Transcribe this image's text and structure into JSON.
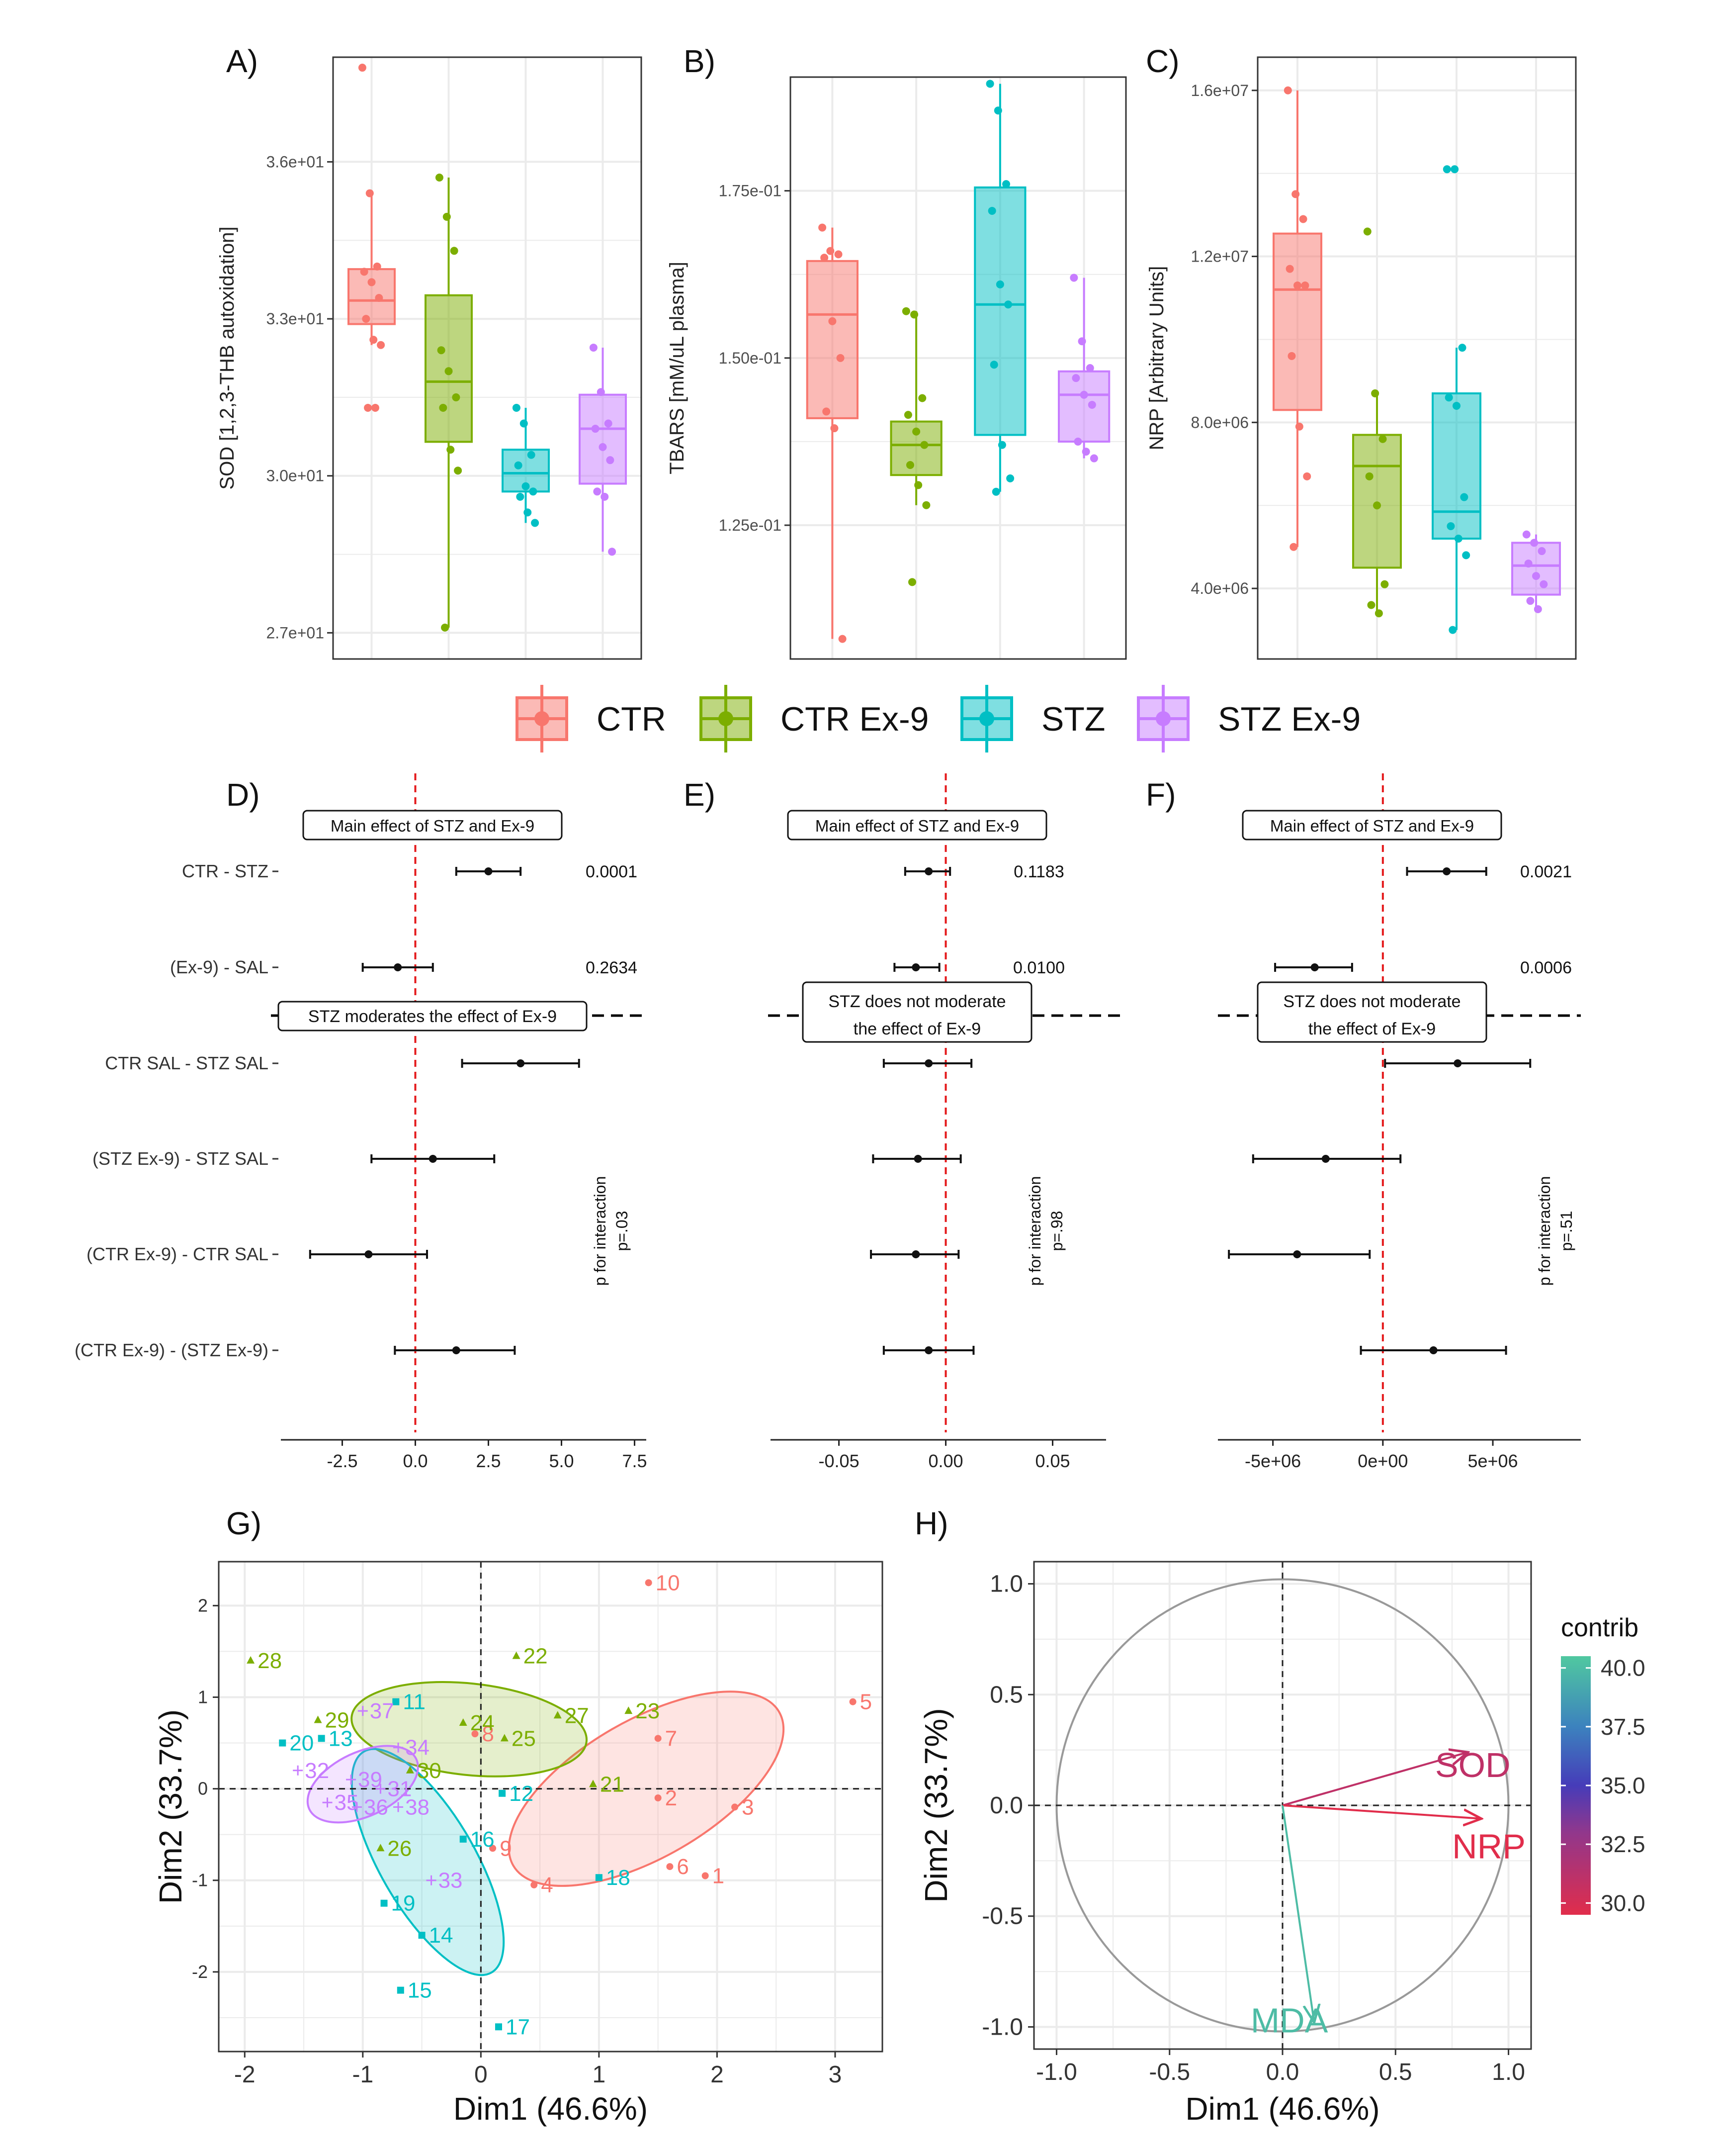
{
  "colors": {
    "CTR": "#F8766D",
    "CTR Ex-9": "#7CAE00",
    "STZ": "#00BFC4",
    "STZ Ex-9": "#C77CFF",
    "grid": "#EBEBEB",
    "ref": "#E41A1C"
  },
  "legend": {
    "items": [
      "CTR",
      "CTR Ex-9",
      "STZ",
      "STZ Ex-9"
    ]
  },
  "chart_data": [
    {
      "id": "A",
      "panel_label": "A)",
      "type": "box",
      "ylabel": "SOD [1,2,3-THB autoxidation]",
      "ylim": [
        26.5,
        38.0
      ],
      "ticks": [
        27,
        30,
        33,
        36
      ],
      "tick_labels": [
        "2.7e+01",
        "3.0e+01",
        "3.3e+01",
        "3.6e+01"
      ],
      "groups": [
        {
          "name": "CTR",
          "q1": 32.9,
          "median": 33.35,
          "q3": 33.95,
          "lo": 32.5,
          "hi": 35.4,
          "points": [
            37.8,
            35.4,
            34.0,
            33.9,
            33.7,
            33.4,
            33.0,
            32.6,
            32.5,
            31.3,
            31.3
          ]
        },
        {
          "name": "CTR Ex-9",
          "q1": 30.65,
          "median": 31.8,
          "q3": 33.45,
          "lo": 27.1,
          "hi": 35.7,
          "points": [
            35.7,
            34.95,
            34.3,
            32.4,
            32.0,
            31.5,
            31.3,
            30.5,
            30.1,
            27.1
          ]
        },
        {
          "name": "STZ",
          "q1": 29.7,
          "median": 30.05,
          "q3": 30.5,
          "lo": 29.1,
          "hi": 31.3,
          "points": [
            31.3,
            31.0,
            30.4,
            30.2,
            29.8,
            29.7,
            29.6,
            29.3,
            29.1
          ]
        },
        {
          "name": "STZ Ex-9",
          "q1": 29.85,
          "median": 30.9,
          "q3": 31.55,
          "lo": 28.55,
          "hi": 32.45,
          "points": [
            32.45,
            31.6,
            31.0,
            30.9,
            30.55,
            30.3,
            29.7,
            29.6,
            28.55
          ]
        }
      ]
    },
    {
      "id": "B",
      "panel_label": "B)",
      "type": "box",
      "ylabel": "TBARS [mM/uL plasma]",
      "ylim": [
        0.105,
        0.192
      ],
      "ticks": [
        0.125,
        0.15,
        0.175
      ],
      "tick_labels": [
        "1.25e-01",
        "1.50e-01",
        "1.75e-01"
      ],
      "groups": [
        {
          "name": "CTR",
          "q1": 0.141,
          "median": 0.1565,
          "q3": 0.1645,
          "lo": 0.108,
          "hi": 0.1695,
          "points": [
            0.1695,
            0.166,
            0.1655,
            0.165,
            0.1555,
            0.15,
            0.142,
            0.1395,
            0.108
          ]
        },
        {
          "name": "CTR Ex-9",
          "q1": 0.1325,
          "median": 0.137,
          "q3": 0.1405,
          "lo": 0.128,
          "hi": 0.157,
          "points": [
            0.157,
            0.1565,
            0.144,
            0.1415,
            0.139,
            0.137,
            0.134,
            0.131,
            0.128,
            0.1165
          ]
        },
        {
          "name": "STZ",
          "q1": 0.1385,
          "median": 0.158,
          "q3": 0.1755,
          "lo": 0.13,
          "hi": 0.191,
          "points": [
            0.191,
            0.187,
            0.176,
            0.172,
            0.161,
            0.158,
            0.149,
            0.137,
            0.132,
            0.13
          ]
        },
        {
          "name": "STZ Ex-9",
          "q1": 0.1375,
          "median": 0.1445,
          "q3": 0.148,
          "lo": 0.135,
          "hi": 0.162,
          "points": [
            0.162,
            0.1525,
            0.1485,
            0.147,
            0.1445,
            0.143,
            0.1375,
            0.136,
            0.135
          ]
        }
      ]
    },
    {
      "id": "C",
      "panel_label": "C)",
      "type": "box",
      "ylabel": "NRP [Arbitrary Units]",
      "ylim": [
        2300000,
        16800000
      ],
      "ticks": [
        4000000,
        8000000,
        12000000,
        16000000
      ],
      "tick_labels": [
        "4.0e+06",
        "8.0e+06",
        "1.2e+07",
        "1.6e+07"
      ],
      "groups": [
        {
          "name": "CTR",
          "q1": 8300000,
          "median": 11200000,
          "q3": 12550000,
          "lo": 5000000,
          "hi": 16000000,
          "points": [
            16000000,
            13500000,
            12900000,
            11700000,
            11300000,
            11300000,
            9600000,
            7900000,
            6700000,
            5000000
          ]
        },
        {
          "name": "CTR Ex-9",
          "q1": 4500000,
          "median": 6950000,
          "q3": 7700000,
          "lo": 3400000,
          "hi": 8700000,
          "points": [
            12600000,
            8700000,
            7600000,
            6700000,
            6000000,
            4100000,
            3600000,
            3400000
          ]
        },
        {
          "name": "STZ",
          "q1": 5200000,
          "median": 5850000,
          "q3": 8700000,
          "lo": 3000000,
          "hi": 9800000,
          "points": [
            14100000,
            14100000,
            9800000,
            8600000,
            8400000,
            6200000,
            5500000,
            5200000,
            4800000,
            3000000
          ]
        },
        {
          "name": "STZ Ex-9",
          "q1": 3850000,
          "median": 4550000,
          "q3": 5100000,
          "lo": 3500000,
          "hi": 5300000,
          "points": [
            5300000,
            5100000,
            4900000,
            4600000,
            4300000,
            4100000,
            3700000,
            3500000
          ]
        }
      ]
    },
    {
      "id": "D",
      "panel_label": "D)",
      "type": "forest",
      "xlim": [
        -4.6,
        7.9
      ],
      "ticks": [
        -2.5,
        0,
        2.5,
        5,
        7.5
      ],
      "tick_labels": [
        "-2.5",
        "0.0",
        "2.5",
        "5.0",
        "7.5"
      ],
      "rows": [
        "CTR - STZ",
        "(Ex-9) - SAL",
        "CTR SAL - STZ SAL",
        "(STZ Ex-9) - STZ SAL",
        "(CTR Ex-9) - CTR SAL",
        "(CTR Ex-9) - (STZ Ex-9)"
      ],
      "estimates": [
        {
          "est": 2.5,
          "lo": 1.4,
          "hi": 3.6
        },
        {
          "est": -0.6,
          "lo": -1.8,
          "hi": 0.6
        },
        {
          "est": 3.6,
          "lo": 1.6,
          "hi": 5.6
        },
        {
          "est": 0.6,
          "lo": -1.5,
          "hi": 2.7
        },
        {
          "est": -1.6,
          "lo": -3.6,
          "hi": 0.4
        },
        {
          "est": 1.4,
          "lo": -0.7,
          "hi": 3.4
        }
      ],
      "pvalues": [
        "0.0001",
        "0.2634"
      ],
      "box_main": "Main effect of STZ and Ex-9",
      "box_mod": [
        "STZ moderates the effect of Ex-9"
      ],
      "interaction": [
        "p for interaction",
        "p=.03"
      ]
    },
    {
      "id": "E",
      "panel_label": "E)",
      "type": "forest",
      "xlim": [
        -0.082,
        0.075
      ],
      "ticks": [
        -0.05,
        0,
        0.05
      ],
      "tick_labels": [
        "-0.05",
        "0.00",
        "0.05"
      ],
      "estimates": [
        {
          "est": -0.008,
          "lo": -0.019,
          "hi": 0.002
        },
        {
          "est": -0.014,
          "lo": -0.024,
          "hi": -0.003
        },
        {
          "est": -0.008,
          "lo": -0.029,
          "hi": 0.012
        },
        {
          "est": -0.013,
          "lo": -0.034,
          "hi": 0.007
        },
        {
          "est": -0.014,
          "lo": -0.035,
          "hi": 0.006
        },
        {
          "est": -0.008,
          "lo": -0.029,
          "hi": 0.013
        }
      ],
      "pvalues": [
        "0.1183",
        "0.0100"
      ],
      "box_main": "Main effect of STZ and Ex-9",
      "box_mod": [
        "STZ does not moderate",
        "the effect of Ex-9"
      ],
      "interaction": [
        "p for interaction",
        "p=.98"
      ]
    },
    {
      "id": "F",
      "panel_label": "F)",
      "type": "forest",
      "xlim": [
        -7500000,
        9000000
      ],
      "ticks": [
        -5000000,
        0,
        5000000
      ],
      "tick_labels": [
        "-5e+06",
        "0e+00",
        "5e+06"
      ],
      "estimates": [
        {
          "est": 2900000,
          "lo": 1100000,
          "hi": 4700000
        },
        {
          "est": -3100000,
          "lo": -4900000,
          "hi": -1400000
        },
        {
          "est": 3400000,
          "lo": 100000,
          "hi": 6700000
        },
        {
          "est": -2600000,
          "lo": -5900000,
          "hi": 800000
        },
        {
          "est": -3900000,
          "lo": -7000000,
          "hi": -600000
        },
        {
          "est": 2300000,
          "lo": -1000000,
          "hi": 5600000
        }
      ],
      "pvalues": [
        "0.0021",
        "0.0006"
      ],
      "box_main": "Main effect of STZ and Ex-9",
      "box_mod": [
        "STZ does not moderate",
        "the effect of Ex-9"
      ],
      "interaction": [
        "p for interaction",
        "p=.51"
      ]
    },
    {
      "id": "G",
      "panel_label": "G)",
      "type": "scatter",
      "xlabel": "Dim1 (46.6%)",
      "ylabel": "Dim2 (33.7%)",
      "xlim": [
        -2.22,
        3.4
      ],
      "ylim": [
        -2.87,
        2.48
      ],
      "xticks": [
        -2,
        -1,
        0,
        1,
        2,
        3
      ],
      "yticks": [
        -2,
        -1,
        0,
        1,
        2
      ],
      "points": [
        {
          "id": "1",
          "group": "CTR",
          "x": 1.9,
          "y": -0.95
        },
        {
          "id": "2",
          "group": "CTR",
          "x": 1.5,
          "y": -0.1
        },
        {
          "id": "3",
          "group": "CTR",
          "x": 2.15,
          "y": -0.2
        },
        {
          "id": "4",
          "group": "CTR",
          "x": 0.45,
          "y": -1.05
        },
        {
          "id": "5",
          "group": "CTR",
          "x": 3.15,
          "y": 0.95
        },
        {
          "id": "6",
          "group": "CTR",
          "x": 1.6,
          "y": -0.85
        },
        {
          "id": "7",
          "group": "CTR",
          "x": 1.5,
          "y": 0.55
        },
        {
          "id": "8",
          "group": "CTR",
          "x": -0.05,
          "y": 0.6
        },
        {
          "id": "9",
          "group": "CTR",
          "x": 0.1,
          "y": -0.65
        },
        {
          "id": "10",
          "group": "CTR",
          "x": 1.42,
          "y": 2.25
        },
        {
          "id": "11",
          "group": "STZ",
          "x": -0.72,
          "y": 0.95
        },
        {
          "id": "12",
          "group": "STZ",
          "x": 0.18,
          "y": -0.05
        },
        {
          "id": "13",
          "group": "STZ",
          "x": -1.35,
          "y": 0.55
        },
        {
          "id": "14",
          "group": "STZ",
          "x": -0.5,
          "y": -1.6
        },
        {
          "id": "15",
          "group": "STZ",
          "x": -0.68,
          "y": -2.2
        },
        {
          "id": "16",
          "group": "STZ",
          "x": -0.15,
          "y": -0.55
        },
        {
          "id": "17",
          "group": "STZ",
          "x": 0.15,
          "y": -2.6
        },
        {
          "id": "18",
          "group": "STZ",
          "x": 1.0,
          "y": -0.97
        },
        {
          "id": "19",
          "group": "STZ",
          "x": -0.82,
          "y": -1.25
        },
        {
          "id": "20",
          "group": "STZ",
          "x": -1.68,
          "y": 0.5
        },
        {
          "id": "21",
          "group": "CTR Ex-9",
          "x": 0.95,
          "y": 0.05
        },
        {
          "id": "22",
          "group": "CTR Ex-9",
          "x": 0.3,
          "y": 1.45
        },
        {
          "id": "23",
          "group": "CTR Ex-9",
          "x": 1.25,
          "y": 0.85
        },
        {
          "id": "24",
          "group": "CTR Ex-9",
          "x": -0.15,
          "y": 0.72
        },
        {
          "id": "25",
          "group": "CTR Ex-9",
          "x": 0.2,
          "y": 0.55
        },
        {
          "id": "26",
          "group": "CTR Ex-9",
          "x": -0.85,
          "y": -0.65
        },
        {
          "id": "27",
          "group": "CTR Ex-9",
          "x": 0.65,
          "y": 0.8
        },
        {
          "id": "28",
          "group": "CTR Ex-9",
          "x": -1.95,
          "y": 1.4
        },
        {
          "id": "29",
          "group": "CTR Ex-9",
          "x": -1.38,
          "y": 0.75
        },
        {
          "id": "30",
          "group": "CTR Ex-9",
          "x": -0.6,
          "y": 0.2
        },
        {
          "id": "31",
          "group": "STZ Ex-9",
          "x": -0.85,
          "y": 0.0
        },
        {
          "id": "32",
          "group": "STZ Ex-9",
          "x": -1.55,
          "y": 0.2
        },
        {
          "id": "33",
          "group": "STZ Ex-9",
          "x": -0.42,
          "y": -1.0
        },
        {
          "id": "34",
          "group": "STZ Ex-9",
          "x": -0.7,
          "y": 0.45
        },
        {
          "id": "35",
          "group": "STZ Ex-9",
          "x": -1.3,
          "y": -0.15
        },
        {
          "id": "36",
          "group": "STZ Ex-9",
          "x": -1.05,
          "y": -0.2
        },
        {
          "id": "37",
          "group": "STZ Ex-9",
          "x": -1.0,
          "y": 0.85
        },
        {
          "id": "38",
          "group": "STZ Ex-9",
          "x": -0.7,
          "y": -0.2
        },
        {
          "id": "39",
          "group": "STZ Ex-9",
          "x": -1.1,
          "y": 0.1
        }
      ],
      "ellipses": [
        {
          "group": "CTR",
          "cx": 1.4,
          "cy": 0.0,
          "rx": 1.3,
          "ry": 0.75,
          "angle_deg": 30
        },
        {
          "group": "CTR Ex-9",
          "cx": -0.1,
          "cy": 0.65,
          "rx": 1.0,
          "ry": 0.5,
          "angle_deg": -6
        },
        {
          "group": "STZ",
          "cx": -0.45,
          "cy": -0.8,
          "rx": 1.08,
          "ry": 0.52,
          "angle_deg": -60
        },
        {
          "group": "STZ Ex-9",
          "cx": -1.0,
          "cy": 0.05,
          "rx": 0.5,
          "ry": 0.35,
          "angle_deg": 25
        }
      ]
    },
    {
      "id": "H",
      "panel_label": "H)",
      "type": "pca_variables",
      "xlabel": "Dim1 (46.6%)",
      "ylabel": "Dim2 (33.7%)",
      "xlim": [
        -1.1,
        1.1
      ],
      "ylim": [
        -1.1,
        1.1
      ],
      "ticks": [
        -1.0,
        -0.5,
        0.0,
        0.5,
        1.0
      ],
      "tick_labels": [
        "-1.0",
        "-0.5",
        "0.0",
        "0.5",
        "1.0"
      ],
      "variables": [
        {
          "name": "SOD",
          "x": 0.82,
          "y": 0.24,
          "contrib": 31.0
        },
        {
          "name": "NRP",
          "x": 0.88,
          "y": -0.06,
          "contrib": 29.5
        },
        {
          "name": "MDA",
          "x": 0.14,
          "y": -0.98,
          "contrib": 40.0
        }
      ],
      "legend_title": "contrib",
      "legend_ticks": [
        "40.0",
        "37.5",
        "35.0",
        "32.5",
        "30.0"
      ],
      "legend_range": [
        29.5,
        40.5
      ]
    }
  ]
}
